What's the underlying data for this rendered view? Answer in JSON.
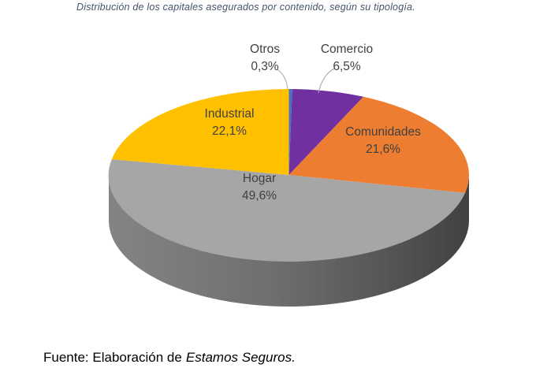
{
  "figure": {
    "title": "Distribución de los capitales asegurados por contenido, según su tipología.",
    "source_prefix": "Fuente: Elaboración de",
    "source_name": "Estamos Seguros."
  },
  "chart_data": {
    "type": "pie",
    "style": "3d",
    "title": "Distribución de los capitales asegurados por contenido, según su tipología.",
    "labels": [
      "Otros",
      "Comercio",
      "Comunidades",
      "Hogar",
      "Industrial"
    ],
    "values": [
      0.3,
      6.5,
      21.6,
      49.6,
      22.1
    ],
    "value_labels": [
      "0,3%",
      "6,5%",
      "21,6%",
      "49,6%",
      "22,1%"
    ],
    "colors": [
      "#4472C4",
      "#7030A0",
      "#ED7D31",
      "#A6A6A6",
      "#FFC000"
    ],
    "start_angle_deg": 0,
    "direction": "clockwise",
    "legend": "none",
    "label_color": "#404040",
    "title_color": "#44546A",
    "leader_line_color": "#A6A6A6",
    "side_gradient": [
      "#848484",
      "#6F6F6F",
      "#535353",
      "#414141"
    ]
  }
}
